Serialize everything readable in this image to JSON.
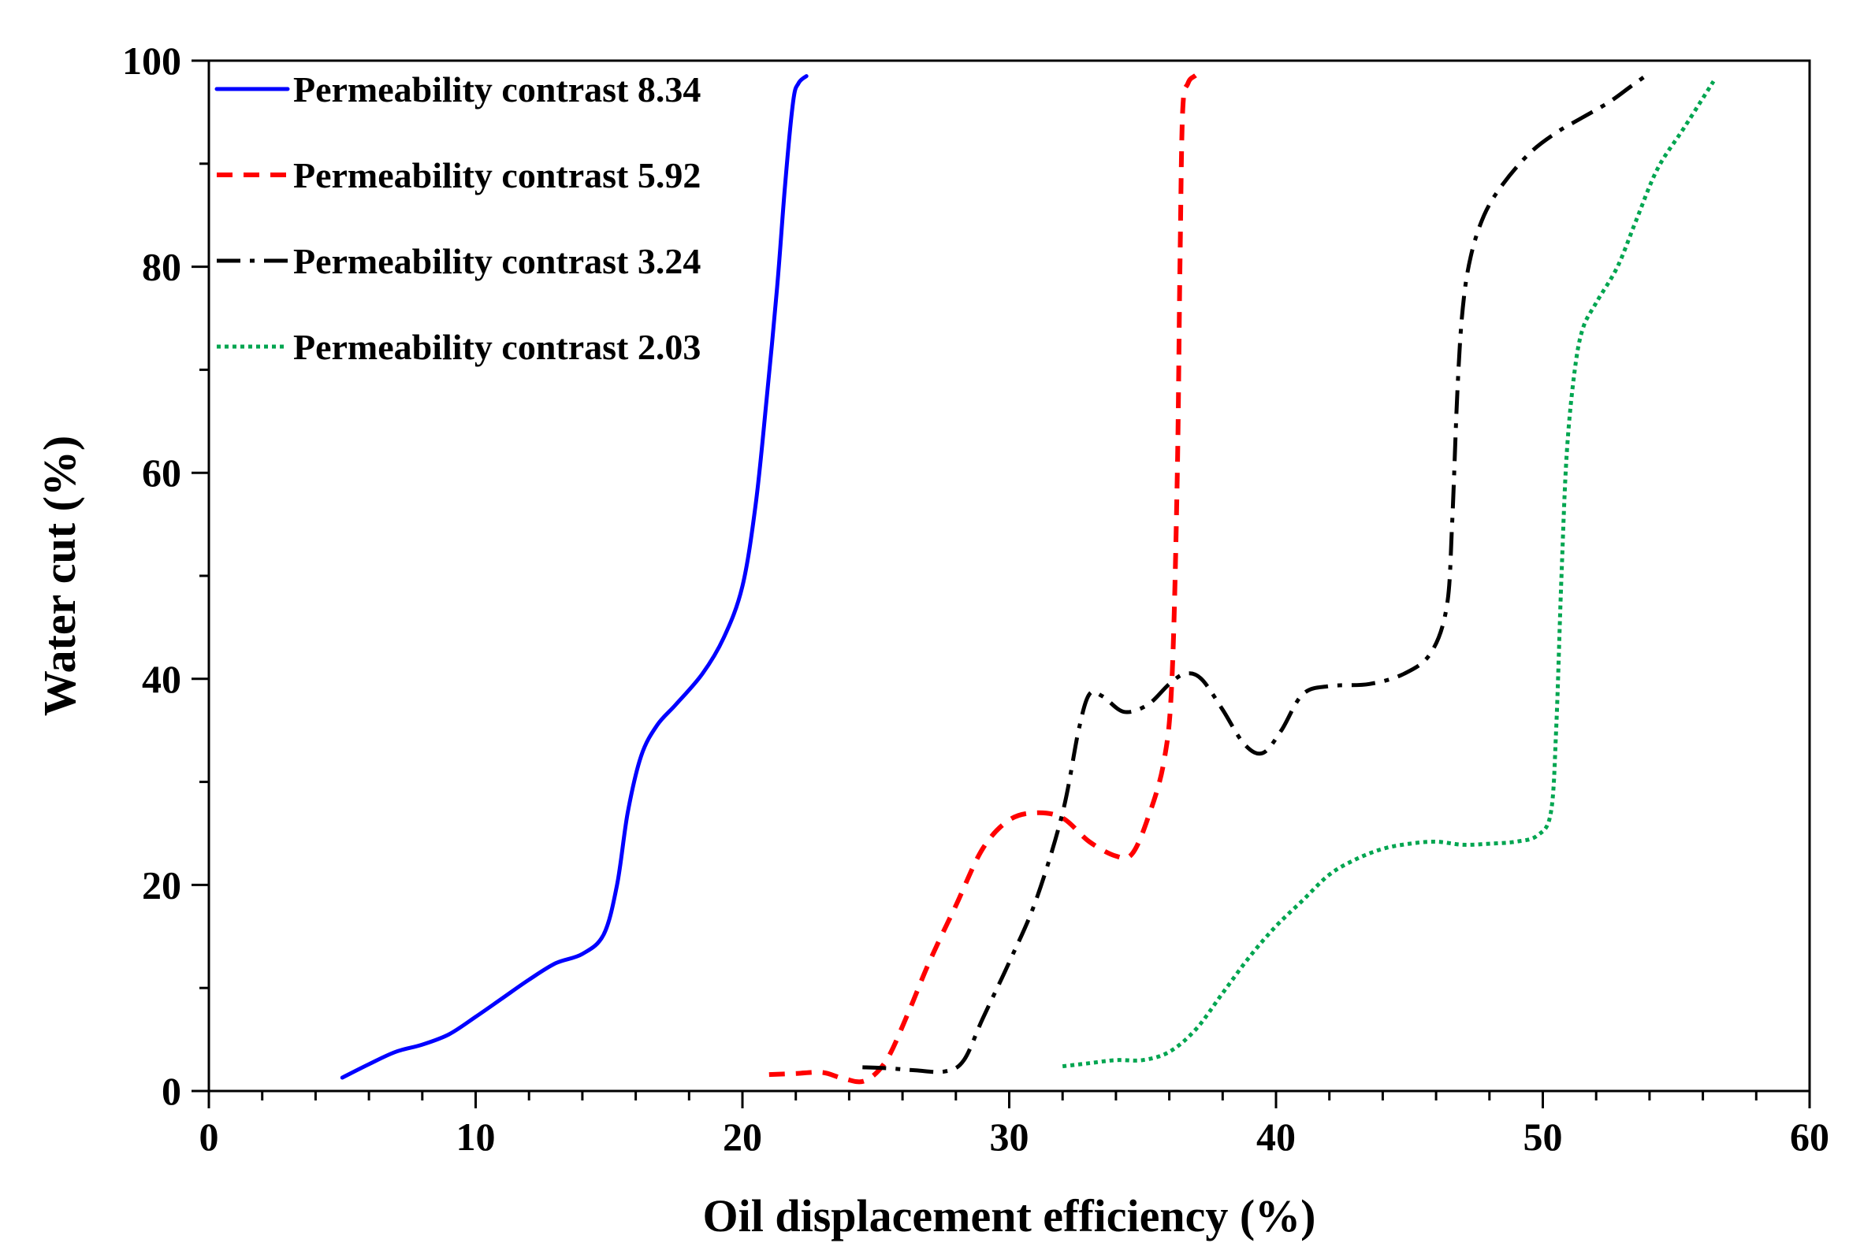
{
  "chart_data": {
    "type": "line",
    "title": "",
    "xlabel": "Oil displacement efficiency (%)",
    "ylabel": "Water cut (%)",
    "xlim": [
      0,
      60
    ],
    "ylim": [
      0,
      100
    ],
    "x_major_ticks": [
      0,
      10,
      20,
      30,
      40,
      50,
      60
    ],
    "x_minor_step": 2,
    "y_major_ticks": [
      0,
      20,
      40,
      60,
      80,
      100
    ],
    "y_minor_step": 10,
    "grid": false,
    "legend_position": "top-left",
    "series": [
      {
        "name": "Permeability contrast 8.34",
        "color": "#0000ff",
        "line_style": "solid",
        "points": [
          [
            5.0,
            1.3
          ],
          [
            6.0,
            2.6
          ],
          [
            7.0,
            3.8
          ],
          [
            8.0,
            4.5
          ],
          [
            9.0,
            5.5
          ],
          [
            10.0,
            7.2
          ],
          [
            11.0,
            9.0
          ],
          [
            12.0,
            10.8
          ],
          [
            13.0,
            12.4
          ],
          [
            14.0,
            13.3
          ],
          [
            14.8,
            15.2
          ],
          [
            15.3,
            20.0
          ],
          [
            15.7,
            27.0
          ],
          [
            16.2,
            32.5
          ],
          [
            16.8,
            35.5
          ],
          [
            17.5,
            37.5
          ],
          [
            18.5,
            40.5
          ],
          [
            19.3,
            44.0
          ],
          [
            20.0,
            49.0
          ],
          [
            20.5,
            57.0
          ],
          [
            20.9,
            67.0
          ],
          [
            21.3,
            78.0
          ],
          [
            21.6,
            88.0
          ],
          [
            21.9,
            96.0
          ],
          [
            22.1,
            97.8
          ],
          [
            22.4,
            98.5
          ]
        ]
      },
      {
        "name": "Permeability contrast 5.92",
        "color": "#ff0000",
        "line_style": "dashed",
        "points": [
          [
            21.0,
            1.6
          ],
          [
            22.0,
            1.7
          ],
          [
            23.0,
            1.8
          ],
          [
            23.8,
            1.2
          ],
          [
            24.6,
            1.0
          ],
          [
            25.4,
            3.0
          ],
          [
            26.2,
            7.5
          ],
          [
            27.0,
            12.5
          ],
          [
            28.0,
            18.0
          ],
          [
            29.0,
            23.5
          ],
          [
            30.0,
            26.3
          ],
          [
            31.0,
            27.0
          ],
          [
            32.0,
            26.5
          ],
          [
            33.0,
            24.2
          ],
          [
            34.0,
            22.8
          ],
          [
            34.6,
            23.0
          ],
          [
            35.2,
            26.5
          ],
          [
            35.8,
            32.0
          ],
          [
            36.1,
            40.0
          ],
          [
            36.3,
            60.0
          ],
          [
            36.4,
            80.0
          ],
          [
            36.5,
            95.0
          ],
          [
            36.7,
            97.8
          ],
          [
            37.0,
            98.6
          ],
          [
            37.3,
            99.2
          ]
        ]
      },
      {
        "name": "Permeability contrast 3.24",
        "color": "#000000",
        "line_style": "dashdot",
        "points": [
          [
            24.5,
            2.3
          ],
          [
            25.5,
            2.2
          ],
          [
            26.5,
            2.0
          ],
          [
            27.6,
            1.9
          ],
          [
            28.3,
            3.0
          ],
          [
            29.0,
            7.0
          ],
          [
            30.0,
            12.5
          ],
          [
            31.0,
            18.5
          ],
          [
            32.0,
            27.0
          ],
          [
            32.6,
            35.0
          ],
          [
            33.0,
            38.5
          ],
          [
            33.5,
            38.3
          ],
          [
            34.3,
            36.8
          ],
          [
            35.2,
            37.5
          ],
          [
            36.0,
            39.5
          ],
          [
            36.6,
            40.5
          ],
          [
            37.2,
            40.0
          ],
          [
            38.0,
            37.0
          ],
          [
            38.8,
            33.7
          ],
          [
            39.5,
            32.8
          ],
          [
            40.2,
            35.0
          ],
          [
            41.0,
            38.5
          ],
          [
            42.0,
            39.3
          ],
          [
            43.5,
            39.5
          ],
          [
            44.8,
            40.5
          ],
          [
            45.8,
            42.5
          ],
          [
            46.4,
            47.0
          ],
          [
            46.6,
            55.0
          ],
          [
            46.8,
            68.0
          ],
          [
            47.0,
            76.0
          ],
          [
            47.3,
            81.0
          ],
          [
            47.8,
            85.0
          ],
          [
            48.5,
            88.0
          ],
          [
            49.5,
            91.0
          ],
          [
            50.5,
            93.0
          ],
          [
            51.5,
            94.5
          ],
          [
            52.5,
            96.0
          ],
          [
            53.3,
            97.5
          ],
          [
            54.0,
            98.8
          ]
        ]
      },
      {
        "name": "Permeability contrast 2.03",
        "color": "#00a550",
        "line_style": "dotted",
        "points": [
          [
            32.0,
            2.4
          ],
          [
            33.0,
            2.7
          ],
          [
            34.0,
            3.0
          ],
          [
            35.0,
            3.0
          ],
          [
            36.0,
            3.8
          ],
          [
            37.0,
            6.0
          ],
          [
            38.0,
            9.5
          ],
          [
            39.0,
            13.0
          ],
          [
            40.0,
            16.0
          ],
          [
            41.0,
            18.5
          ],
          [
            42.0,
            21.0
          ],
          [
            43.0,
            22.5
          ],
          [
            44.0,
            23.5
          ],
          [
            45.0,
            24.0
          ],
          [
            46.0,
            24.2
          ],
          [
            47.0,
            23.9
          ],
          [
            48.0,
            24.0
          ],
          [
            49.0,
            24.2
          ],
          [
            49.8,
            24.8
          ],
          [
            50.3,
            27.0
          ],
          [
            50.5,
            35.0
          ],
          [
            50.7,
            50.0
          ],
          [
            50.9,
            62.0
          ],
          [
            51.2,
            70.0
          ],
          [
            51.5,
            74.0
          ],
          [
            52.0,
            76.5
          ],
          [
            52.8,
            80.0
          ],
          [
            53.5,
            84.5
          ],
          [
            54.3,
            89.5
          ],
          [
            55.3,
            93.5
          ],
          [
            56.4,
            98.0
          ]
        ]
      }
    ]
  }
}
